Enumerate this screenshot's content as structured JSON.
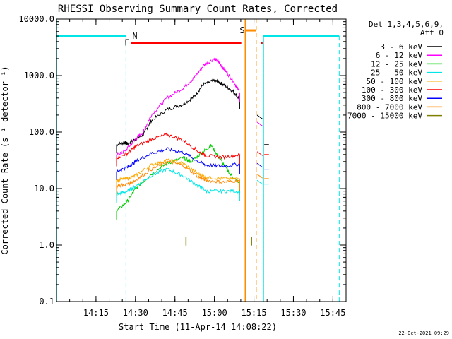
{
  "chart_data": {
    "type": "line",
    "title": "RHESSI Observing Summary Count Rates, Corrected",
    "xlabel": "Start Time (11-Apr-14 14:08:22)",
    "ylabel": "Corrected Count Rate (s⁻¹ detector⁻¹)",
    "yscale": "log",
    "ylim": [
      0.1,
      10000.0
    ],
    "xlim_minutes": [
      14.0,
      15.8333
    ],
    "x_tick_labels": [
      "14:15",
      "14:30",
      "14:45",
      "15:00",
      "15:15",
      "15:30",
      "15:45"
    ],
    "y_tick_labels": [
      "0.1",
      "1.0",
      "10.0",
      "100.0",
      "1000.0",
      "10000.0"
    ],
    "legend_header": [
      "Det 1,3,4,5,6,9,",
      "Att 0"
    ],
    "legend_position": "right",
    "timestamp": "22-Oct-2021 09:29",
    "flag_labels": {
      "N": "N",
      "F": "F",
      "S": "S"
    },
    "flag_colors": {
      "night": "#00e5e5",
      "flare": "#ff0000",
      "saa": "#ff8c00"
    },
    "x_axis_units": "hours_utc",
    "series": [
      {
        "name": "3 - 6 keV",
        "color": "#000000",
        "x": [
          14.38,
          14.43,
          14.45,
          14.5,
          14.55,
          14.6,
          14.7,
          14.8,
          14.87,
          14.93,
          15.0,
          15.03,
          15.07,
          15.12,
          15.16
        ],
        "y": [
          60,
          65,
          62,
          75,
          90,
          160,
          250,
          310,
          420,
          700,
          820,
          760,
          660,
          520,
          380
        ]
      },
      {
        "name": "6 - 12 keV",
        "color": "#ff00ff",
        "x": [
          14.38,
          14.43,
          14.5,
          14.55,
          14.6,
          14.7,
          14.8,
          14.87,
          14.93,
          15.0,
          15.03,
          15.07,
          15.12,
          15.16
        ],
        "y": [
          40,
          45,
          75,
          100,
          200,
          400,
          600,
          900,
          1500,
          2000,
          1700,
          1200,
          800,
          500
        ]
      },
      {
        "name": "12 - 25 keV",
        "color": "#00cc00",
        "x": [
          14.38,
          14.45,
          14.5,
          14.6,
          14.7,
          14.8,
          14.85,
          14.93,
          14.98,
          15.03,
          15.1,
          15.16
        ],
        "y": [
          4,
          6,
          10,
          18,
          28,
          35,
          30,
          45,
          58,
          35,
          18,
          12
        ]
      },
      {
        "name": "25 - 50 keV",
        "color": "#00e5e5",
        "x": [
          14.38,
          14.45,
          14.5,
          14.6,
          14.7,
          14.8,
          14.9,
          14.95,
          15.05,
          15.16
        ],
        "y": [
          8,
          9,
          11,
          17,
          22,
          17,
          11,
          9,
          9,
          9
        ]
      },
      {
        "name": "50 - 100 keV",
        "color": "#ffaa00",
        "x": [
          14.38,
          14.45,
          14.5,
          14.6,
          14.7,
          14.8,
          14.9,
          14.95,
          15.05,
          15.16
        ],
        "y": [
          14,
          15,
          17,
          26,
          32,
          28,
          18,
          16,
          15,
          15
        ]
      },
      {
        "name": "100 - 300 keV",
        "color": "#ff0000",
        "x": [
          14.38,
          14.45,
          14.5,
          14.6,
          14.7,
          14.8,
          14.9,
          14.95,
          15.05,
          15.16
        ],
        "y": [
          35,
          42,
          55,
          75,
          90,
          72,
          45,
          38,
          36,
          40
        ]
      },
      {
        "name": "300 - 800 keV",
        "color": "#0000ff",
        "x": [
          14.38,
          14.45,
          14.5,
          14.6,
          14.7,
          14.8,
          14.9,
          14.95,
          15.05,
          15.16
        ],
        "y": [
          20,
          24,
          30,
          42,
          50,
          44,
          30,
          26,
          25,
          27
        ]
      },
      {
        "name": "800 - 7000 keV",
        "color": "#ff8800",
        "x": [
          14.38,
          14.45,
          14.5,
          14.6,
          14.7,
          14.8,
          14.9,
          14.95,
          15.05,
          15.16
        ],
        "y": [
          11,
          12,
          14,
          22,
          30,
          26,
          16,
          14,
          13,
          14
        ]
      },
      {
        "name": "7000 - 15000 keV",
        "color": "#808000",
        "x": [
          14.82
        ],
        "y": [
          1.1
        ]
      }
    ]
  }
}
